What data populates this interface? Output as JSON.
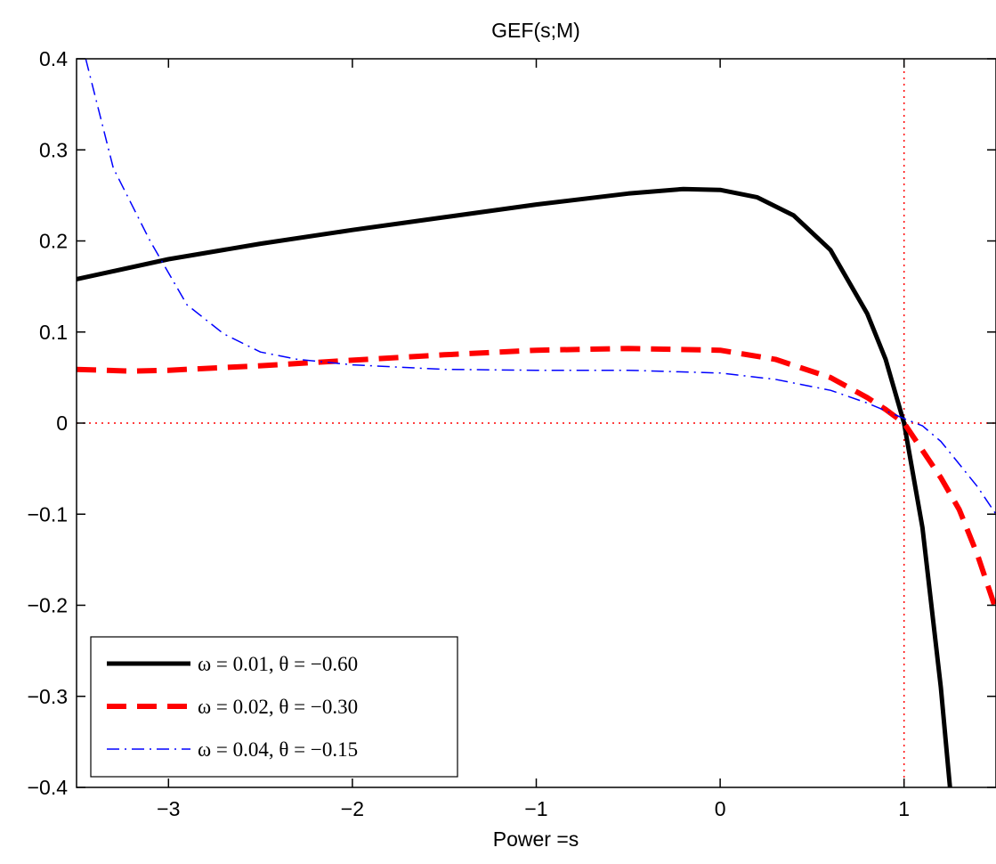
{
  "chart_data": {
    "type": "line",
    "title": "GEF(s;M)",
    "xlabel": "Power =s",
    "ylabel": "",
    "xlim": [
      -3.5,
      1.5
    ],
    "ylim": [
      -0.4,
      0.4
    ],
    "xticks": [
      -3,
      -2,
      -1,
      0,
      1
    ],
    "xtick_labels": [
      "−3",
      "−2",
      "−1",
      "0",
      "1"
    ],
    "yticks": [
      -0.4,
      -0.3,
      -0.2,
      -0.1,
      0,
      0.1,
      0.2,
      0.3,
      0.4
    ],
    "ytick_labels": [
      "−0.4",
      "−0.3",
      "−0.2",
      "−0.1",
      "0",
      "0.1",
      "0.2",
      "0.3",
      "0.4"
    ],
    "grid": false,
    "legend_position": "bottom-left",
    "reference_lines": [
      {
        "axis": "y",
        "value": 0,
        "color": "#ff0000",
        "style": "dotted"
      },
      {
        "axis": "x",
        "value": 1,
        "color": "#ff0000",
        "style": "dotted"
      }
    ],
    "series": [
      {
        "name": "ω = 0.01, θ = −0.60",
        "color": "#000000",
        "style": "solid",
        "width": 5,
        "x": [
          -3.5,
          -3.0,
          -2.5,
          -2.0,
          -1.5,
          -1.0,
          -0.5,
          -0.2,
          0.0,
          0.2,
          0.4,
          0.6,
          0.8,
          0.9,
          1.0,
          1.1,
          1.2,
          1.25
        ],
        "y": [
          0.158,
          0.18,
          0.197,
          0.212,
          0.226,
          0.24,
          0.252,
          0.257,
          0.256,
          0.248,
          0.228,
          0.19,
          0.12,
          0.07,
          0.0,
          -0.115,
          -0.29,
          -0.4
        ]
      },
      {
        "name": "ω = 0.02, θ = −0.30",
        "color": "#ff0000",
        "style": "dashed",
        "width": 6,
        "x": [
          -3.5,
          -3.2,
          -3.0,
          -2.5,
          -2.0,
          -1.5,
          -1.0,
          -0.5,
          0.0,
          0.3,
          0.6,
          0.8,
          0.9,
          1.0,
          1.1,
          1.2,
          1.3,
          1.4,
          1.5
        ],
        "y": [
          0.059,
          0.057,
          0.058,
          0.063,
          0.069,
          0.075,
          0.08,
          0.082,
          0.08,
          0.07,
          0.05,
          0.028,
          0.015,
          0.0,
          -0.03,
          -0.06,
          -0.095,
          -0.145,
          -0.205
        ]
      },
      {
        "name": "ω = 0.04, θ = −0.15",
        "color": "#0000ff",
        "style": "dashdot",
        "width": 1.5,
        "x": [
          -3.45,
          -3.3,
          -3.1,
          -2.9,
          -2.7,
          -2.5,
          -2.3,
          -2.0,
          -1.5,
          -1.0,
          -0.5,
          0.0,
          0.3,
          0.6,
          0.8,
          1.0,
          1.1,
          1.2,
          1.3,
          1.4,
          1.5
        ],
        "y": [
          0.4,
          0.28,
          0.2,
          0.13,
          0.098,
          0.078,
          0.07,
          0.064,
          0.059,
          0.058,
          0.058,
          0.055,
          0.048,
          0.036,
          0.022,
          0.005,
          -0.003,
          -0.02,
          -0.045,
          -0.07,
          -0.1
        ]
      }
    ]
  }
}
